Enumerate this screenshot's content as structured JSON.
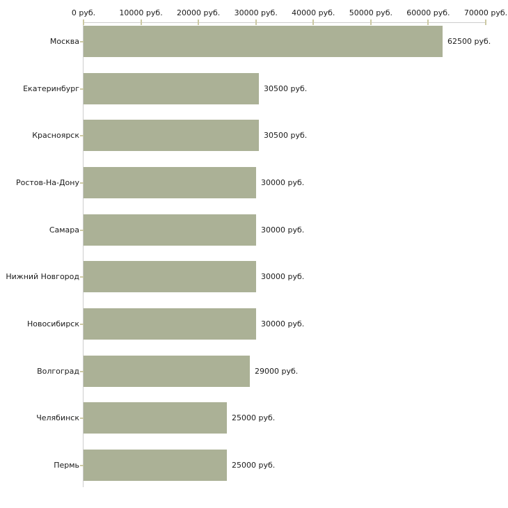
{
  "chart_data": {
    "type": "bar",
    "orientation": "horizontal",
    "title": "",
    "xlabel": "",
    "ylabel": "",
    "categories": [
      "Москва",
      "Екатеринбург",
      "Красноярск",
      "Ростов-На-Дону",
      "Самара",
      "Нижний Новгород",
      "Новосибирск",
      "Волгоград",
      "Челябинск",
      "Пермь"
    ],
    "values": [
      62500,
      30500,
      30500,
      30000,
      30000,
      30000,
      30000,
      29000,
      25000,
      25000
    ],
    "value_labels": [
      "62500 руб.",
      "30500 руб.",
      "30500 руб.",
      "30000 руб.",
      "30000 руб.",
      "30000 руб.",
      "30000 руб.",
      "29000 руб.",
      "25000 руб.",
      "25000 руб."
    ],
    "x_ticks": [
      0,
      10000,
      20000,
      30000,
      40000,
      50000,
      60000,
      70000
    ],
    "x_tick_labels": [
      "0 руб.",
      "10000 руб.",
      "20000 руб.",
      "30000 руб.",
      "40000 руб.",
      "50000 руб.",
      "60000 руб.",
      "70000 руб."
    ],
    "xlim": [
      0,
      70000
    ],
    "grid": false,
    "legend": null,
    "colors": {
      "bar": "#abb196",
      "axis_line": "#cccccc",
      "tick": "#ccc9a3",
      "text": "#1a1a1a",
      "background": "#ffffff"
    }
  }
}
